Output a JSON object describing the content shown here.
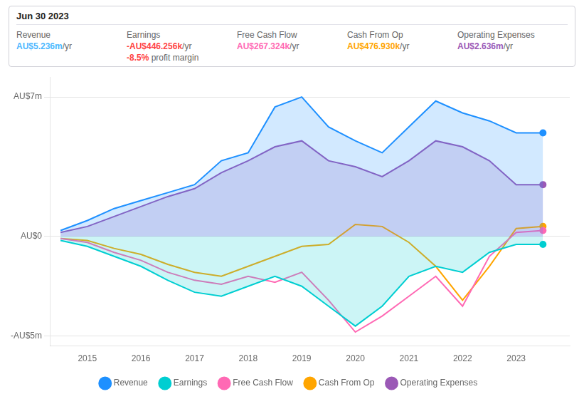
{
  "chart_data": {
    "type": "line",
    "x": [
      2014.5,
      2015.0,
      2015.5,
      2016.0,
      2016.5,
      2017.0,
      2017.5,
      2018.0,
      2018.5,
      2019.0,
      2019.5,
      2020.0,
      2020.5,
      2021.0,
      2021.5,
      2022.0,
      2022.5,
      2023.0,
      2023.5
    ],
    "series": [
      {
        "name": "Revenue",
        "color": "#1e90ff",
        "type": "area",
        "values": [
          0.3,
          0.8,
          1.4,
          1.8,
          2.2,
          2.6,
          3.8,
          4.2,
          6.5,
          7.0,
          5.5,
          4.8,
          4.2,
          5.5,
          6.8,
          6.2,
          5.8,
          5.2,
          5.2
        ]
      },
      {
        "name": "Earnings",
        "color": "#00ced1",
        "type": "area",
        "values": [
          -0.2,
          -0.5,
          -1.0,
          -1.5,
          -2.2,
          -2.8,
          -3.0,
          -2.5,
          -2.0,
          -2.5,
          -3.5,
          -4.5,
          -3.5,
          -2.0,
          -1.5,
          -1.8,
          -0.8,
          -0.4,
          -0.4
        ]
      },
      {
        "name": "Free Cash Flow",
        "color": "#ff69b4",
        "type": "line",
        "values": [
          -0.1,
          -0.3,
          -0.8,
          -1.2,
          -1.8,
          -2.2,
          -2.4,
          -2.0,
          -2.3,
          -1.8,
          -3.2,
          -4.8,
          -4.0,
          -3.0,
          -2.0,
          -3.5,
          -1.0,
          0.2,
          0.3
        ]
      },
      {
        "name": "Cash From Op",
        "color": "#ffa500",
        "type": "line",
        "values": [
          -0.1,
          -0.2,
          -0.6,
          -0.9,
          -1.4,
          -1.8,
          -2.0,
          -1.5,
          -1.0,
          -0.5,
          -0.4,
          0.6,
          0.5,
          -0.3,
          -1.5,
          -3.2,
          -1.5,
          0.4,
          0.5
        ]
      },
      {
        "name": "Operating Expenses",
        "color": "#9b59b6",
        "type": "area",
        "values": [
          0.2,
          0.5,
          1.0,
          1.5,
          2.0,
          2.4,
          3.2,
          3.8,
          4.5,
          4.8,
          3.8,
          3.5,
          3.0,
          3.8,
          4.8,
          4.5,
          3.8,
          2.6,
          2.6
        ]
      }
    ],
    "xlim": [
      2014.3,
      2024.0
    ],
    "xticks": [
      2015,
      2016,
      2017,
      2018,
      2019,
      2020,
      2021,
      2022,
      2023
    ],
    "ylim": [
      -5.5,
      8.0
    ],
    "yticks": [
      {
        "value": -5,
        "label": "-AU$5m"
      },
      {
        "value": 0,
        "label": "AU$0"
      },
      {
        "value": 7,
        "label": "AU$7m"
      }
    ],
    "grid": true,
    "legend": "bottom",
    "annotations": {
      "title": "Jun 30 2023",
      "rows": [
        {
          "label": "Revenue",
          "value": "AU$5.236m",
          "unit": "/yr",
          "color": "#4db8ff"
        },
        {
          "label": "Earnings",
          "value": "-AU$446.256k",
          "unit": "/yr",
          "color": "#ff4444",
          "sub_value": "-8.5%",
          "sub_text": " profit margin",
          "sub_color": "#ff4444"
        },
        {
          "label": "Free Cash Flow",
          "value": "AU$267.324k",
          "unit": "/yr",
          "color": "#ff69b4"
        },
        {
          "label": "Cash From Op",
          "value": "AU$476.930k",
          "unit": "/yr",
          "color": "#ffa500"
        },
        {
          "label": "Operating Expenses",
          "value": "AU$2.636m",
          "unit": "/yr",
          "color": "#9b59b6"
        }
      ]
    }
  }
}
